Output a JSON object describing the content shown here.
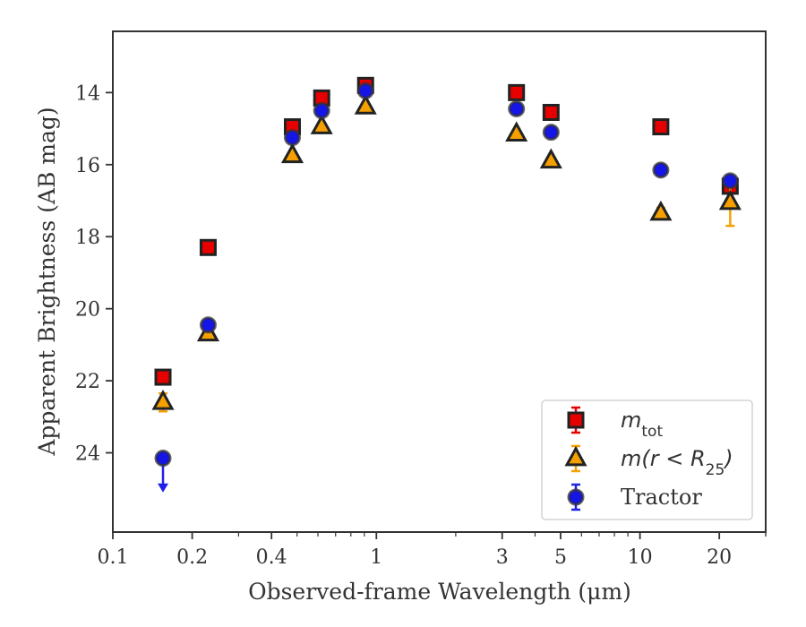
{
  "chart_data": {
    "type": "scatter",
    "xlabel": "Observed-frame Wavelength (μm)",
    "ylabel": "Apparent Brightness (AB mag)",
    "xscale": "log",
    "yinverted": true,
    "xlim": [
      0.1,
      30
    ],
    "ylim": [
      26.2,
      12.3
    ],
    "xticks": [
      {
        "value": 0.1,
        "label": "0.1"
      },
      {
        "value": 0.2,
        "label": "0.2"
      },
      {
        "value": 0.4,
        "label": "0.4"
      },
      {
        "value": 1,
        "label": "1"
      },
      {
        "value": 3,
        "label": "3"
      },
      {
        "value": 5,
        "label": "5"
      },
      {
        "value": 10,
        "label": "10"
      },
      {
        "value": 20,
        "label": "20"
      }
    ],
    "yticks": [
      {
        "value": 14,
        "label": "14"
      },
      {
        "value": 16,
        "label": "16"
      },
      {
        "value": 18,
        "label": "18"
      },
      {
        "value": 20,
        "label": "20"
      },
      {
        "value": 22,
        "label": "22"
      },
      {
        "value": 24,
        "label": "24"
      }
    ],
    "legend_position": "lower-right",
    "series": [
      {
        "name": "m_tot",
        "marker": "square",
        "color": "#e60000",
        "errcolor": "#e60000",
        "points": [
          {
            "x": 0.155,
            "y": 21.9,
            "err": 0.1
          },
          {
            "x": 0.23,
            "y": 18.3,
            "err": 0.08
          },
          {
            "x": 0.48,
            "y": 14.95,
            "err": 0.05
          },
          {
            "x": 0.62,
            "y": 14.15,
            "err": 0.05
          },
          {
            "x": 0.91,
            "y": 13.8,
            "err": 0.05
          },
          {
            "x": 3.4,
            "y": 14.0,
            "err": 0.05
          },
          {
            "x": 4.6,
            "y": 14.55,
            "err": 0.05
          },
          {
            "x": 12.0,
            "y": 14.95,
            "err": 0.05
          },
          {
            "x": 22.0,
            "y": 16.6,
            "err": 0.1
          }
        ]
      },
      {
        "name": "m(r < R25)",
        "marker": "triangle",
        "color": "#f5a000",
        "errcolor": "#f5a000",
        "points": [
          {
            "x": 0.155,
            "y": 22.6,
            "err": 0.25
          },
          {
            "x": 0.23,
            "y": 20.7,
            "err": 0.1
          },
          {
            "x": 0.48,
            "y": 15.75,
            "err": 0.05
          },
          {
            "x": 0.62,
            "y": 14.95,
            "err": 0.05
          },
          {
            "x": 0.91,
            "y": 14.4,
            "err": 0.05
          },
          {
            "x": 3.4,
            "y": 15.15,
            "err": 0.05
          },
          {
            "x": 4.6,
            "y": 15.9,
            "err": 0.05
          },
          {
            "x": 12.0,
            "y": 17.35,
            "err": 0.15
          },
          {
            "x": 22.0,
            "y": 17.05,
            "err": 0.65
          }
        ]
      },
      {
        "name": "Tractor",
        "marker": "circle",
        "color": "#1515e6",
        "errcolor": "#2020e8",
        "points": [
          {
            "x": 0.155,
            "y": 24.15,
            "err": 0,
            "upper_limit": true
          },
          {
            "x": 0.23,
            "y": 20.45,
            "err": 0.05
          },
          {
            "x": 0.48,
            "y": 15.25,
            "err": 0.05
          },
          {
            "x": 0.62,
            "y": 14.5,
            "err": 0.05
          },
          {
            "x": 0.91,
            "y": 13.95,
            "err": 0.05
          },
          {
            "x": 3.4,
            "y": 14.45,
            "err": 0.05
          },
          {
            "x": 4.6,
            "y": 15.1,
            "err": 0.05
          },
          {
            "x": 12.0,
            "y": 16.15,
            "err": 0.05
          },
          {
            "x": 22.0,
            "y": 16.45,
            "err": 0.05
          }
        ]
      }
    ],
    "legend": [
      {
        "marker": "square",
        "color": "#e60000",
        "errcolor": "#e60000",
        "label_base": "m",
        "label_sub": "tot"
      },
      {
        "marker": "triangle",
        "color": "#f5a000",
        "errcolor": "#f5a000",
        "label_base": "m(r < R",
        "label_sub": "25",
        "label_tail": ")"
      },
      {
        "marker": "circle",
        "color": "#1515e6",
        "errcolor": "#2020e8",
        "label_text": "Tractor"
      }
    ]
  }
}
